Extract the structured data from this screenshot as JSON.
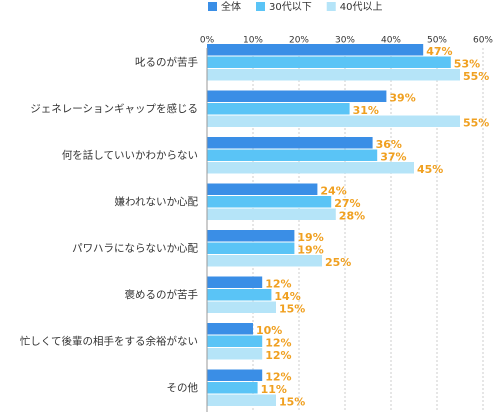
{
  "chart_data": {
    "type": "bar",
    "orientation": "horizontal",
    "categories": [
      "叱るのが苦手",
      "ジェネレーションギャップを感じる",
      "何を話していいかわからない",
      "嫌われないか心配",
      "パワハラにならないか心配",
      "褒めるのが苦手",
      "忙しくて後輩の相手をする余裕がない",
      "その他"
    ],
    "series": [
      {
        "name": "全体",
        "color": "#3a8ee6",
        "values": [
          47,
          39,
          36,
          24,
          19,
          12,
          10,
          12
        ],
        "value_labels": [
          "47%",
          "39%",
          "36%",
          "24%",
          "19%",
          "12%",
          "10%",
          "12%"
        ]
      },
      {
        "name": "30代以下",
        "color": "#5ac4f6",
        "values": [
          53,
          31,
          37,
          27,
          19,
          14,
          12,
          11
        ],
        "value_labels": [
          "53%",
          "31%",
          "37%",
          "27%",
          "19%",
          "14%",
          "12%",
          "11%"
        ]
      },
      {
        "name": "40代以上",
        "color": "#b5e4f8",
        "values": [
          55,
          55,
          45,
          28,
          25,
          15,
          12,
          15
        ],
        "value_labels": [
          "55%",
          "55%",
          "45%",
          "28%",
          "25%",
          "15%",
          "12%",
          "15%"
        ]
      }
    ],
    "xlim": [
      0,
      60
    ],
    "xticks": [
      {
        "value": 0,
        "label": "0%"
      },
      {
        "value": 10,
        "label": "10%"
      },
      {
        "value": 20,
        "label": "20%"
      },
      {
        "value": 30,
        "label": "30%"
      },
      {
        "value": 40,
        "label": "40%"
      },
      {
        "value": 50,
        "label": "50%"
      },
      {
        "value": 60,
        "label": "60%"
      }
    ],
    "grid": true,
    "value_label_color": "#f0a020"
  }
}
